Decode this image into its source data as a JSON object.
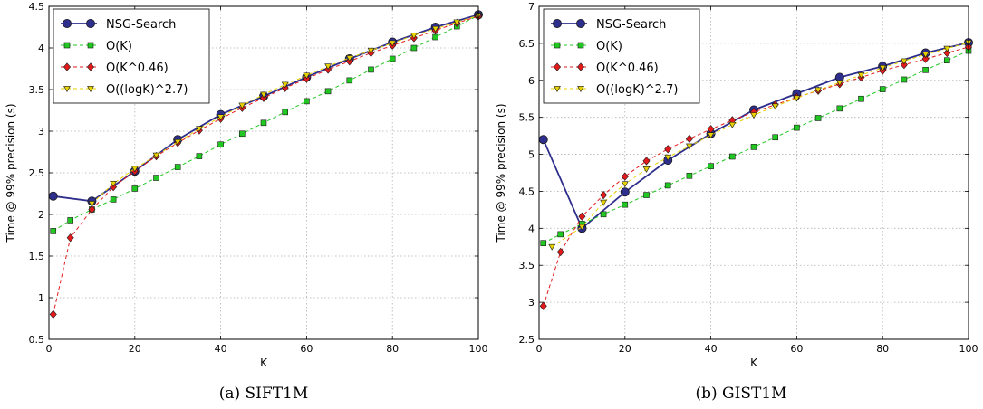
{
  "colors": {
    "nsg": "#2e2e8c",
    "ok": "#22c822",
    "ok046": "#e31a1c",
    "olog": "#e6d200",
    "grid": "#b0b0b0"
  },
  "chart_data": [
    {
      "type": "line",
      "caption": "(a) SIFT1M",
      "xlabel": "K",
      "ylabel": "Time @ 99% precision (s)",
      "xlim": [
        0,
        100
      ],
      "ylim": [
        0.5,
        4.5
      ],
      "xticks": [
        0,
        20,
        40,
        60,
        80,
        100
      ],
      "yticks": [
        0.5,
        1.0,
        1.5,
        2.0,
        2.5,
        3.0,
        3.5,
        4.0,
        4.5
      ],
      "grid": true,
      "legend_position": "top-left",
      "series": [
        {
          "name": "NSG-Search",
          "style": "solid-circle",
          "x": [
            1,
            10,
            20,
            30,
            40,
            50,
            60,
            70,
            80,
            90,
            100
          ],
          "y": [
            2.22,
            2.16,
            2.52,
            2.9,
            3.2,
            3.42,
            3.65,
            3.87,
            4.07,
            4.25,
            4.4
          ]
        },
        {
          "name": "O(K)",
          "style": "dashed-square",
          "x": [
            1,
            5,
            10,
            15,
            20,
            25,
            30,
            35,
            40,
            45,
            50,
            55,
            60,
            65,
            70,
            75,
            80,
            85,
            90,
            95,
            100
          ],
          "y": [
            1.8,
            1.93,
            2.06,
            2.18,
            2.31,
            2.44,
            2.57,
            2.7,
            2.84,
            2.97,
            3.1,
            3.23,
            3.36,
            3.48,
            3.61,
            3.74,
            3.87,
            4.0,
            4.13,
            4.26,
            4.39
          ]
        },
        {
          "name": "O(K^0.46)",
          "style": "dashed-diamond",
          "x": [
            1,
            5,
            10,
            15,
            20,
            25,
            30,
            35,
            40,
            45,
            50,
            55,
            60,
            65,
            70,
            75,
            80,
            85,
            90,
            95,
            100
          ],
          "y": [
            0.8,
            1.72,
            2.06,
            2.33,
            2.52,
            2.7,
            2.86,
            3.01,
            3.15,
            3.28,
            3.4,
            3.52,
            3.63,
            3.74,
            3.84,
            3.94,
            4.03,
            4.12,
            4.21,
            4.3,
            4.38
          ]
        },
        {
          "name": "O((logK)^2.7)",
          "style": "dashed-triangle",
          "x": [
            10,
            15,
            20,
            25,
            30,
            35,
            40,
            45,
            50,
            55,
            60,
            65,
            70,
            75,
            80,
            85,
            90,
            95,
            100
          ],
          "y": [
            2.13,
            2.37,
            2.55,
            2.71,
            2.87,
            3.03,
            3.17,
            3.31,
            3.44,
            3.56,
            3.67,
            3.78,
            3.88,
            3.97,
            4.06,
            4.15,
            4.23,
            4.31,
            4.39
          ]
        }
      ]
    },
    {
      "type": "line",
      "caption": "(b) GIST1M",
      "xlabel": "K",
      "ylabel": "Time @ 99% precision (s)",
      "xlim": [
        0,
        100
      ],
      "ylim": [
        2.5,
        7.0
      ],
      "xticks": [
        0,
        20,
        40,
        60,
        80,
        100
      ],
      "yticks": [
        2.5,
        3.0,
        3.5,
        4.0,
        4.5,
        5.0,
        5.5,
        6.0,
        6.5,
        7.0
      ],
      "grid": true,
      "legend_position": "top-left",
      "series": [
        {
          "name": "NSG-Search",
          "style": "solid-circle",
          "x": [
            1,
            10,
            20,
            30,
            40,
            50,
            60,
            70,
            80,
            90,
            100
          ],
          "y": [
            5.2,
            4.0,
            4.49,
            4.92,
            5.28,
            5.6,
            5.82,
            6.04,
            6.19,
            6.37,
            6.51
          ]
        },
        {
          "name": "O(K)",
          "style": "dashed-square",
          "x": [
            1,
            5,
            10,
            15,
            20,
            25,
            30,
            35,
            40,
            45,
            50,
            55,
            60,
            65,
            70,
            75,
            80,
            85,
            90,
            95,
            100
          ],
          "y": [
            3.8,
            3.92,
            4.06,
            4.19,
            4.32,
            4.45,
            4.58,
            4.71,
            4.84,
            4.97,
            5.1,
            5.23,
            5.36,
            5.49,
            5.62,
            5.75,
            5.88,
            6.01,
            6.14,
            6.27,
            6.4
          ]
        },
        {
          "name": "O(K^0.46)",
          "style": "dashed-diamond",
          "x": [
            1,
            5,
            10,
            15,
            20,
            25,
            30,
            35,
            40,
            45,
            50,
            55,
            60,
            65,
            70,
            75,
            80,
            85,
            90,
            95,
            100
          ],
          "y": [
            2.95,
            3.68,
            4.16,
            4.45,
            4.7,
            4.91,
            5.07,
            5.21,
            5.34,
            5.46,
            5.57,
            5.67,
            5.77,
            5.86,
            5.95,
            6.04,
            6.13,
            6.21,
            6.29,
            6.37,
            6.45
          ]
        },
        {
          "name": "O((logK)^2.7)",
          "style": "dashed-triangle",
          "x": [
            3,
            10,
            15,
            20,
            25,
            30,
            35,
            40,
            45,
            50,
            55,
            60,
            65,
            70,
            75,
            80,
            85,
            90,
            95,
            100
          ],
          "y": [
            3.75,
            4.02,
            4.35,
            4.6,
            4.8,
            4.96,
            5.11,
            5.26,
            5.4,
            5.53,
            5.65,
            5.76,
            5.87,
            5.97,
            6.07,
            6.17,
            6.26,
            6.35,
            6.43,
            6.51
          ]
        }
      ]
    }
  ]
}
